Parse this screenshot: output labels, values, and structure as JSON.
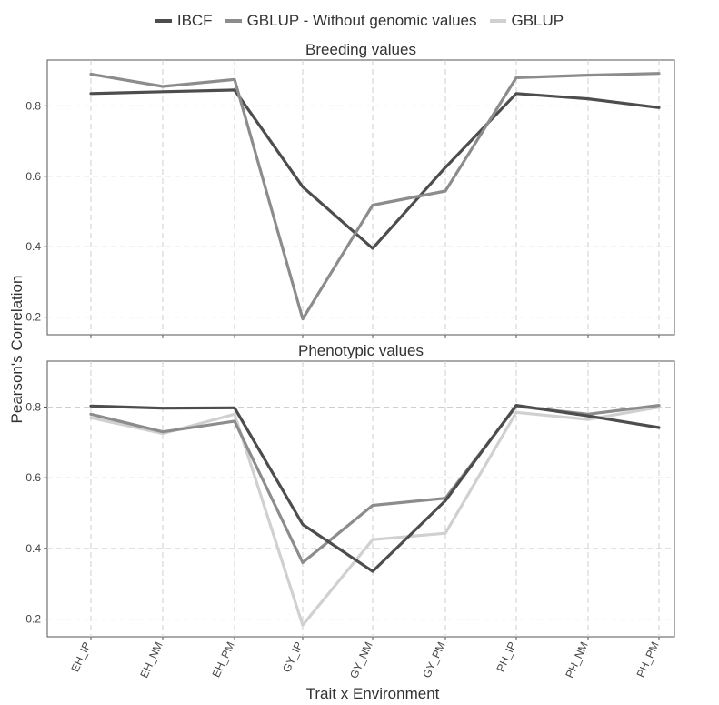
{
  "legend": [
    {
      "name": "IBCF",
      "color": "#4d4d4d"
    },
    {
      "name": "GBLUP - Without genomic values",
      "color": "#8c8c8c"
    },
    {
      "name": "GBLUP",
      "color": "#d0d0d0"
    }
  ],
  "chart_data": [
    {
      "type": "line",
      "title": "Breeding values",
      "x": [
        "EH_IP",
        "EH_NM",
        "EH_PM",
        "GY_IP",
        "GY_NM",
        "GY_PM",
        "PH_IP",
        "PH_NM",
        "PH_PM"
      ],
      "ylim": [
        0.15,
        0.93
      ],
      "yticks": [
        0.2,
        0.4,
        0.6,
        0.8
      ],
      "grid": true,
      "series": [
        {
          "name": "IBCF",
          "color": "#4d4d4d",
          "values": [
            0.835,
            0.84,
            0.845,
            0.57,
            0.395,
            0.625,
            0.835,
            0.82,
            0.795
          ]
        },
        {
          "name": "GBLUP - Without genomic values",
          "color": "#8c8c8c",
          "values": [
            0.89,
            0.855,
            0.875,
            0.195,
            0.518,
            0.558,
            0.88,
            0.887,
            0.892
          ]
        }
      ]
    },
    {
      "type": "line",
      "title": "Phenotypic values",
      "x": [
        "EH_IP",
        "EH_NM",
        "EH_PM",
        "GY_IP",
        "GY_NM",
        "GY_PM",
        "PH_IP",
        "PH_NM",
        "PH_PM"
      ],
      "ylim": [
        0.15,
        0.93
      ],
      "yticks": [
        0.2,
        0.4,
        0.6,
        0.8
      ],
      "grid": true,
      "series": [
        {
          "name": "GBLUP",
          "color": "#d0d0d0",
          "values": [
            0.77,
            0.725,
            0.78,
            0.183,
            0.425,
            0.443,
            0.785,
            0.765,
            0.8
          ]
        },
        {
          "name": "GBLUP - Without genomic values",
          "color": "#8c8c8c",
          "values": [
            0.78,
            0.73,
            0.76,
            0.36,
            0.522,
            0.542,
            0.802,
            0.78,
            0.805
          ]
        },
        {
          "name": "IBCF",
          "color": "#4d4d4d",
          "values": [
            0.803,
            0.797,
            0.798,
            0.468,
            0.335,
            0.535,
            0.805,
            0.775,
            0.742
          ]
        }
      ]
    }
  ],
  "axes": {
    "ylabel": "Pearson's Correlation",
    "xlabel": "Trait x Environment"
  }
}
